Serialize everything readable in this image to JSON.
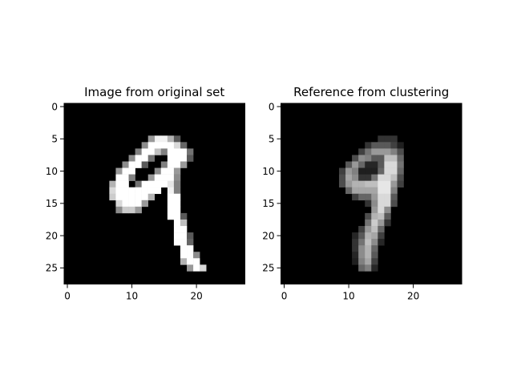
{
  "chart_data": [
    {
      "type": "heatmap",
      "title": "Image from original set",
      "xlabel": "",
      "ylabel": "",
      "rows": 28,
      "cols": 28,
      "colormap": "gray",
      "xlim": [
        -0.5,
        27.5
      ],
      "ylim": [
        27.5,
        -0.5
      ],
      "xticks": [
        0,
        10,
        20
      ],
      "yticks": [
        0,
        5,
        10,
        15,
        20,
        25
      ],
      "grid": false,
      "pixels": [
        {
          "row": 5,
          "cols": [
            [
              14,
              15,
              0.95
            ],
            [
              13,
              13,
              0.6
            ],
            [
              16,
              16,
              0.7
            ],
            [
              17,
              17,
              0.35
            ]
          ]
        },
        {
          "row": 6,
          "cols": [
            [
              12,
              12,
              0.55
            ],
            [
              13,
              16,
              1.0
            ],
            [
              17,
              17,
              0.85
            ],
            [
              18,
              18,
              0.4
            ]
          ]
        },
        {
          "row": 7,
          "cols": [
            [
              11,
              11,
              0.5
            ],
            [
              12,
              13,
              1.0
            ],
            [
              14,
              14,
              0.75
            ],
            [
              15,
              15,
              0.5
            ],
            [
              16,
              18,
              1.0
            ],
            [
              19,
              19,
              0.45
            ]
          ]
        },
        {
          "row": 8,
          "cols": [
            [
              10,
              10,
              0.55
            ],
            [
              11,
              12,
              1.0
            ],
            [
              13,
              13,
              0.45
            ],
            [
              16,
              18,
              1.0
            ],
            [
              19,
              19,
              0.35
            ]
          ]
        },
        {
          "row": 9,
          "cols": [
            [
              9,
              9,
              0.55
            ],
            [
              10,
              11,
              1.0
            ],
            [
              12,
              12,
              0.35
            ],
            [
              15,
              15,
              0.5
            ],
            [
              16,
              17,
              1.0
            ],
            [
              18,
              18,
              0.6
            ]
          ]
        },
        {
          "row": 10,
          "cols": [
            [
              8,
              8,
              0.6
            ],
            [
              9,
              10,
              1.0
            ],
            [
              14,
              14,
              0.55
            ],
            [
              15,
              16,
              1.0
            ],
            [
              17,
              17,
              0.6
            ]
          ]
        },
        {
          "row": 11,
          "cols": [
            [
              8,
              9,
              1.0
            ],
            [
              10,
              10,
              0.5
            ],
            [
              13,
              13,
              0.6
            ],
            [
              14,
              16,
              1.0
            ],
            [
              17,
              17,
              0.55
            ]
          ]
        },
        {
          "row": 12,
          "cols": [
            [
              7,
              7,
              0.7
            ],
            [
              8,
              9,
              1.0
            ],
            [
              11,
              11,
              0.45
            ],
            [
              12,
              15,
              1.0
            ],
            [
              16,
              16,
              0.9
            ],
            [
              17,
              17,
              0.5
            ]
          ]
        },
        {
          "row": 13,
          "cols": [
            [
              7,
              7,
              0.85
            ],
            [
              8,
              14,
              1.0
            ],
            [
              16,
              16,
              0.95
            ],
            [
              17,
              17,
              0.5
            ]
          ]
        },
        {
          "row": 14,
          "cols": [
            [
              7,
              7,
              0.8
            ],
            [
              8,
              12,
              1.0
            ],
            [
              13,
              13,
              0.7
            ],
            [
              16,
              17,
              1.0
            ]
          ]
        },
        {
          "row": 15,
          "cols": [
            [
              8,
              8,
              0.85
            ],
            [
              9,
              11,
              1.0
            ],
            [
              12,
              12,
              0.6
            ],
            [
              16,
              17,
              1.0
            ]
          ]
        },
        {
          "row": 16,
          "cols": [
            [
              8,
              8,
              0.55
            ],
            [
              9,
              10,
              0.8
            ],
            [
              11,
              11,
              0.6
            ],
            [
              16,
              17,
              1.0
            ]
          ]
        },
        {
          "row": 17,
          "cols": [
            [
              16,
              17,
              1.0
            ],
            [
              18,
              18,
              0.35
            ]
          ]
        },
        {
          "row": 18,
          "cols": [
            [
              17,
              17,
              1.0
            ],
            [
              18,
              18,
              0.75
            ]
          ]
        },
        {
          "row": 19,
          "cols": [
            [
              17,
              18,
              1.0
            ]
          ]
        },
        {
          "row": 20,
          "cols": [
            [
              17,
              18,
              1.0
            ],
            [
              19,
              19,
              0.35
            ]
          ]
        },
        {
          "row": 21,
          "cols": [
            [
              17,
              18,
              1.0
            ],
            [
              19,
              19,
              0.4
            ]
          ]
        },
        {
          "row": 22,
          "cols": [
            [
              18,
              19,
              1.0
            ]
          ]
        },
        {
          "row": 23,
          "cols": [
            [
              18,
              19,
              1.0
            ],
            [
              20,
              20,
              0.55
            ]
          ]
        },
        {
          "row": 24,
          "cols": [
            [
              18,
              18,
              0.7
            ],
            [
              19,
              20,
              1.0
            ]
          ]
        },
        {
          "row": 25,
          "cols": [
            [
              19,
              19,
              0.6
            ],
            [
              20,
              20,
              1.0
            ],
            [
              21,
              21,
              0.85
            ]
          ]
        }
      ]
    },
    {
      "type": "heatmap",
      "title": "Reference from clustering",
      "xlabel": "",
      "ylabel": "",
      "rows": 28,
      "cols": 28,
      "colormap": "gray",
      "xlim": [
        -0.5,
        27.5
      ],
      "ylim": [
        27.5,
        -0.5
      ],
      "xticks": [
        0,
        10,
        20
      ],
      "yticks": [
        0,
        5,
        10,
        15,
        20,
        25
      ],
      "grid": false,
      "pixels": [
        {
          "row": 5,
          "cols": [
            [
              15,
              17,
              0.2
            ]
          ]
        },
        {
          "row": 6,
          "cols": [
            [
              13,
              13,
              0.2
            ],
            [
              14,
              16,
              0.35
            ],
            [
              17,
              17,
              0.25
            ],
            [
              18,
              18,
              0.12
            ]
          ]
        },
        {
          "row": 7,
          "cols": [
            [
              12,
              12,
              0.25
            ],
            [
              13,
              13,
              0.45
            ],
            [
              14,
              16,
              0.6
            ],
            [
              17,
              17,
              0.5
            ],
            [
              18,
              18,
              0.3
            ]
          ]
        },
        {
          "row": 8,
          "cols": [
            [
              11,
              11,
              0.3
            ],
            [
              12,
              12,
              0.55
            ],
            [
              13,
              13,
              0.5
            ],
            [
              14,
              15,
              0.35
            ],
            [
              16,
              17,
              0.75
            ],
            [
              18,
              18,
              0.4
            ]
          ]
        },
        {
          "row": 9,
          "cols": [
            [
              10,
              10,
              0.35
            ],
            [
              11,
              11,
              0.6
            ],
            [
              12,
              12,
              0.4
            ],
            [
              13,
              14,
              0.15
            ],
            [
              15,
              15,
              0.35
            ],
            [
              16,
              17,
              0.85
            ],
            [
              18,
              18,
              0.45
            ]
          ]
        },
        {
          "row": 10,
          "cols": [
            [
              9,
              9,
              0.25
            ],
            [
              10,
              10,
              0.6
            ],
            [
              11,
              11,
              0.5
            ],
            [
              12,
              14,
              0.12
            ],
            [
              15,
              15,
              0.4
            ],
            [
              16,
              17,
              0.85
            ],
            [
              18,
              18,
              0.4
            ]
          ]
        },
        {
          "row": 11,
          "cols": [
            [
              9,
              9,
              0.3
            ],
            [
              10,
              10,
              0.65
            ],
            [
              11,
              11,
              0.55
            ],
            [
              12,
              13,
              0.2
            ],
            [
              14,
              14,
              0.45
            ],
            [
              15,
              16,
              0.85
            ],
            [
              17,
              17,
              0.75
            ],
            [
              18,
              18,
              0.3
            ]
          ]
        },
        {
          "row": 12,
          "cols": [
            [
              9,
              9,
              0.3
            ],
            [
              10,
              10,
              0.6
            ],
            [
              11,
              12,
              0.7
            ],
            [
              13,
              14,
              0.75
            ],
            [
              15,
              16,
              0.9
            ],
            [
              17,
              17,
              0.6
            ],
            [
              18,
              18,
              0.25
            ]
          ]
        },
        {
          "row": 13,
          "cols": [
            [
              10,
              10,
              0.4
            ],
            [
              11,
              14,
              0.65
            ],
            [
              15,
              16,
              0.9
            ],
            [
              17,
              17,
              0.5
            ]
          ]
        },
        {
          "row": 14,
          "cols": [
            [
              11,
              11,
              0.25
            ],
            [
              12,
              13,
              0.4
            ],
            [
              14,
              14,
              0.6
            ],
            [
              15,
              16,
              0.85
            ],
            [
              17,
              17,
              0.35
            ]
          ]
        },
        {
          "row": 15,
          "cols": [
            [
              13,
              13,
              0.2
            ],
            [
              14,
              14,
              0.55
            ],
            [
              15,
              16,
              0.85
            ],
            [
              17,
              17,
              0.3
            ]
          ]
        },
        {
          "row": 16,
          "cols": [
            [
              14,
              14,
              0.6
            ],
            [
              15,
              15,
              0.85
            ],
            [
              16,
              16,
              0.55
            ]
          ]
        },
        {
          "row": 17,
          "cols": [
            [
              13,
              13,
              0.3
            ],
            [
              14,
              14,
              0.7
            ],
            [
              15,
              15,
              0.75
            ],
            [
              16,
              16,
              0.35
            ]
          ]
        },
        {
          "row": 18,
          "cols": [
            [
              13,
              13,
              0.45
            ],
            [
              14,
              14,
              0.8
            ],
            [
              15,
              15,
              0.6
            ],
            [
              16,
              16,
              0.2
            ]
          ]
        },
        {
          "row": 19,
          "cols": [
            [
              12,
              12,
              0.25
            ],
            [
              13,
              13,
              0.6
            ],
            [
              14,
              14,
              0.75
            ],
            [
              15,
              15,
              0.4
            ]
          ]
        },
        {
          "row": 20,
          "cols": [
            [
              11,
              11,
              0.15
            ],
            [
              12,
              12,
              0.35
            ],
            [
              13,
              13,
              0.7
            ],
            [
              14,
              14,
              0.65
            ],
            [
              15,
              15,
              0.25
            ]
          ]
        },
        {
          "row": 21,
          "cols": [
            [
              11,
              11,
              0.2
            ],
            [
              12,
              12,
              0.45
            ],
            [
              13,
              13,
              0.75
            ],
            [
              14,
              14,
              0.55
            ],
            [
              15,
              15,
              0.15
            ]
          ]
        },
        {
          "row": 22,
          "cols": [
            [
              11,
              11,
              0.2
            ],
            [
              12,
              12,
              0.55
            ],
            [
              13,
              13,
              0.7
            ],
            [
              14,
              14,
              0.4
            ]
          ]
        },
        {
          "row": 23,
          "cols": [
            [
              11,
              11,
              0.15
            ],
            [
              12,
              12,
              0.55
            ],
            [
              13,
              13,
              0.7
            ],
            [
              14,
              14,
              0.35
            ]
          ]
        },
        {
          "row": 24,
          "cols": [
            [
              11,
              11,
              0.12
            ],
            [
              12,
              12,
              0.5
            ],
            [
              13,
              13,
              0.65
            ],
            [
              14,
              14,
              0.25
            ]
          ]
        },
        {
          "row": 25,
          "cols": [
            [
              12,
              12,
              0.4
            ],
            [
              13,
              13,
              0.5
            ],
            [
              14,
              14,
              0.15
            ]
          ]
        }
      ]
    }
  ]
}
